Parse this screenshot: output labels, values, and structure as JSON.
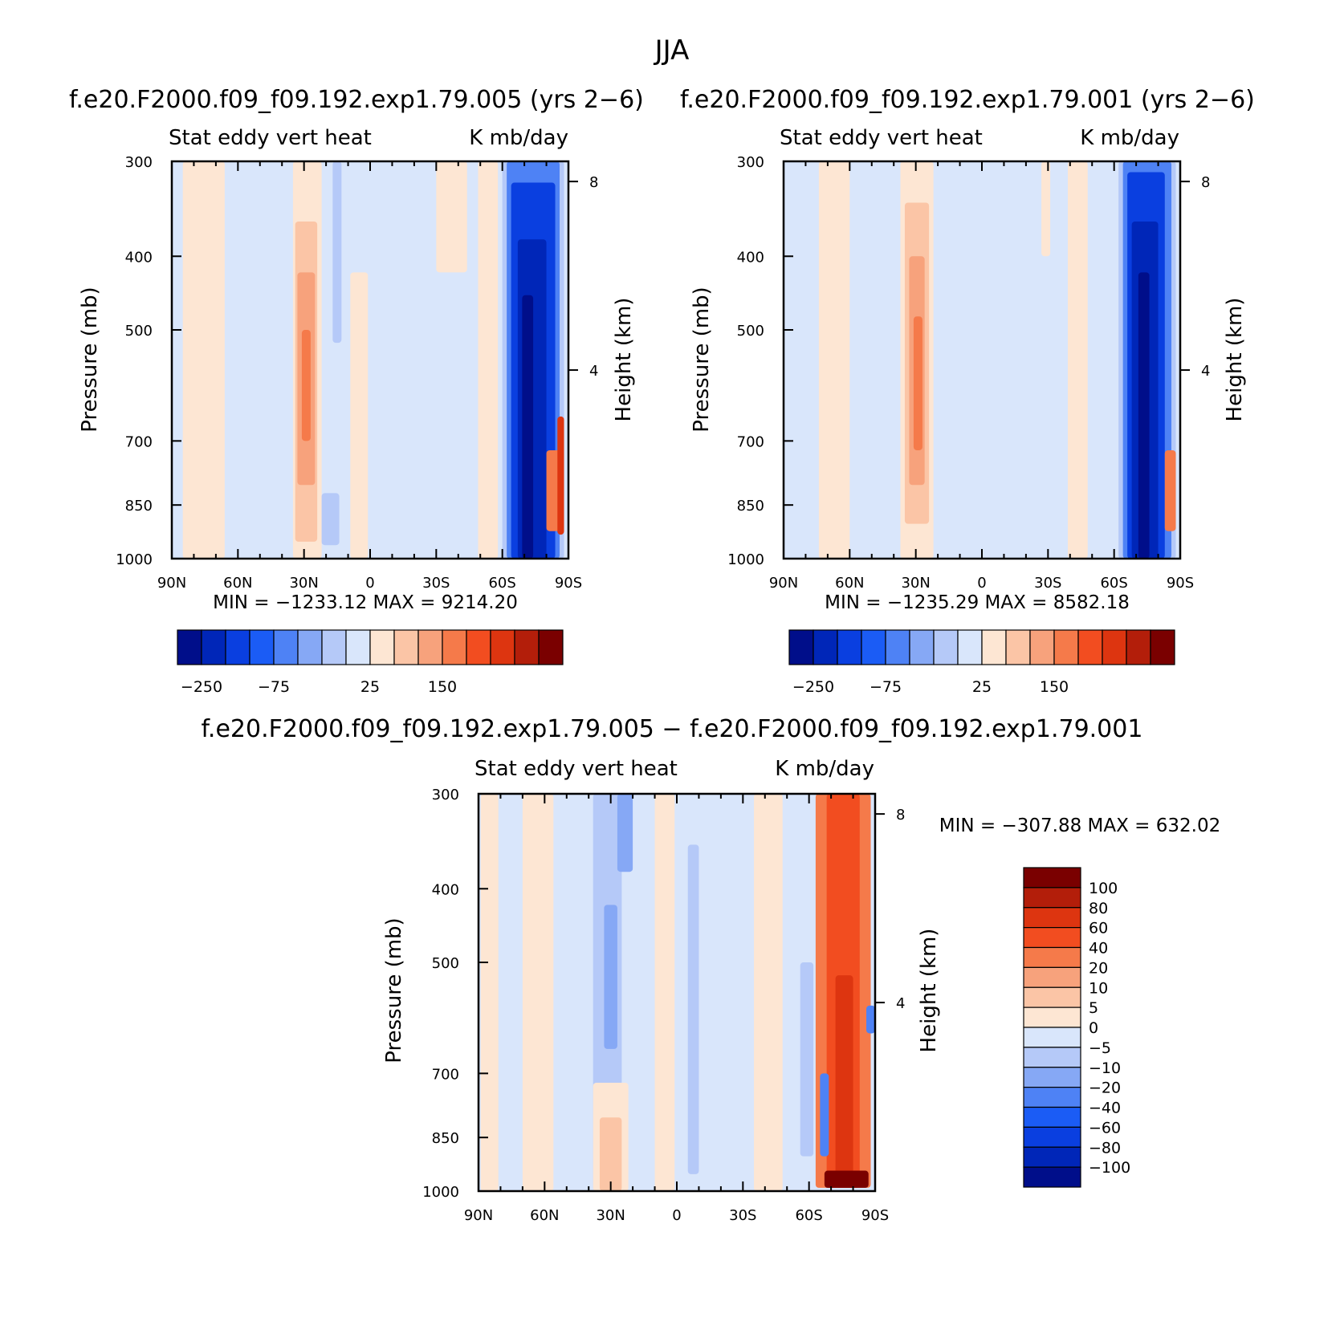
{
  "figure_title": "JJA",
  "chart_data": [
    {
      "type": "heatmap",
      "id": "p1",
      "title": "f.e20.F2000.f09_f09.192.exp1.79.005 (yrs 2−6)",
      "left_label": "Stat eddy vert heat",
      "right_label": "K mb/day",
      "ylabel": "Pressure (mb)",
      "y2label": "Height (km)",
      "x_ticks": [
        "90N",
        "60N",
        "30N",
        "0",
        "30S",
        "60S",
        "90S"
      ],
      "x_tick_values": [
        90,
        60,
        30,
        0,
        -30,
        -60,
        -90
      ],
      "y_ticks": [
        "300",
        "400",
        "500",
        "700",
        "850",
        "1000"
      ],
      "y_tick_values": [
        300,
        400,
        500,
        700,
        850,
        1000
      ],
      "y2_ticks": [
        "8",
        "4"
      ],
      "y2_tick_values": [
        8,
        4
      ],
      "xlim": [
        90,
        -90
      ],
      "ylim": [
        1000,
        300
      ],
      "min_max_text": "MIN = −1233.12   MAX = 9214.20",
      "colorbar_labels": [
        "−250",
        "−75",
        "25",
        "150"
      ],
      "colorbar_colors": [
        "#000e8a",
        "#0026b8",
        "#0a3fe0",
        "#1b5cf5",
        "#4e82f5",
        "#86a8f5",
        "#b5c9f8",
        "#d9e6fb",
        "#fde6d3",
        "#fbc5a6",
        "#f7a27c",
        "#f57a4a",
        "#f24d20",
        "#dd3510",
        "#b31e0a",
        "#7a0000"
      ],
      "field": [
        {
          "lat_min": 66,
          "lat_max": 85,
          "p_top": 300,
          "p_bot": 1000,
          "color": "#fde6d3"
        },
        {
          "lat_min": 22,
          "lat_max": 35,
          "p_top": 300,
          "p_bot": 1000,
          "color": "#fde6d3"
        },
        {
          "lat_min": 24,
          "lat_max": 34,
          "p_top": 360,
          "p_bot": 950,
          "color": "#fbc5a6"
        },
        {
          "lat_min": 25,
          "lat_max": 33,
          "p_top": 420,
          "p_bot": 800,
          "color": "#f7a27c"
        },
        {
          "lat_min": 27,
          "lat_max": 31,
          "p_top": 500,
          "p_bot": 700,
          "color": "#f57a4a"
        },
        {
          "lat_min": 1,
          "lat_max": 9,
          "p_top": 420,
          "p_bot": 1000,
          "color": "#fde6d3"
        },
        {
          "lat_min": 13,
          "lat_max": 17,
          "p_top": 300,
          "p_bot": 520,
          "color": "#b5c9f8"
        },
        {
          "lat_min": 14,
          "lat_max": 22,
          "p_top": 820,
          "p_bot": 960,
          "color": "#b5c9f8"
        },
        {
          "lat_min": -44,
          "lat_max": -30,
          "p_top": 300,
          "p_bot": 420,
          "color": "#fde6d3"
        },
        {
          "lat_min": -58,
          "lat_max": -49,
          "p_top": 300,
          "p_bot": 1000,
          "color": "#fde6d3"
        },
        {
          "lat_min": -88,
          "lat_max": -60,
          "p_top": 300,
          "p_bot": 1000,
          "color": "#b5c9f8"
        },
        {
          "lat_min": -86,
          "lat_max": -62,
          "p_top": 300,
          "p_bot": 1000,
          "color": "#4e82f5"
        },
        {
          "lat_min": -84,
          "lat_max": -64,
          "p_top": 320,
          "p_bot": 1000,
          "color": "#0a3fe0"
        },
        {
          "lat_min": -80,
          "lat_max": -67,
          "p_top": 380,
          "p_bot": 1000,
          "color": "#0026b8"
        },
        {
          "lat_min": -74,
          "lat_max": -69,
          "p_top": 450,
          "p_bot": 1000,
          "color": "#000e8a"
        },
        {
          "lat_min": -88,
          "lat_max": -80,
          "p_top": 720,
          "p_bot": 920,
          "color": "#f57a4a"
        },
        {
          "lat_min": -88,
          "lat_max": -85,
          "p_top": 650,
          "p_bot": 930,
          "color": "#dd3510"
        }
      ]
    },
    {
      "type": "heatmap",
      "id": "p2",
      "title": "f.e20.F2000.f09_f09.192.exp1.79.001 (yrs 2−6)",
      "left_label": "Stat eddy vert heat",
      "right_label": "K mb/day",
      "ylabel": "Pressure (mb)",
      "y2label": "Height (km)",
      "x_ticks": [
        "90N",
        "60N",
        "30N",
        "0",
        "30S",
        "60S",
        "90S"
      ],
      "x_tick_values": [
        90,
        60,
        30,
        0,
        -30,
        -60,
        -90
      ],
      "y_ticks": [
        "300",
        "400",
        "500",
        "700",
        "850",
        "1000"
      ],
      "y_tick_values": [
        300,
        400,
        500,
        700,
        850,
        1000
      ],
      "y2_ticks": [
        "8",
        "4"
      ],
      "y2_tick_values": [
        8,
        4
      ],
      "xlim": [
        90,
        -90
      ],
      "ylim": [
        1000,
        300
      ],
      "min_max_text": "MIN = −1235.29   MAX = 8582.18",
      "colorbar_labels": [
        "−250",
        "−75",
        "25",
        "150"
      ],
      "colorbar_colors": [
        "#000e8a",
        "#0026b8",
        "#0a3fe0",
        "#1b5cf5",
        "#4e82f5",
        "#86a8f5",
        "#b5c9f8",
        "#d9e6fb",
        "#fde6d3",
        "#fbc5a6",
        "#f7a27c",
        "#f57a4a",
        "#f24d20",
        "#dd3510",
        "#b31e0a",
        "#7a0000"
      ],
      "field": [
        {
          "lat_min": 60,
          "lat_max": 74,
          "p_top": 300,
          "p_bot": 1000,
          "color": "#fde6d3"
        },
        {
          "lat_min": 22,
          "lat_max": 37,
          "p_top": 300,
          "p_bot": 1000,
          "color": "#fde6d3"
        },
        {
          "lat_min": 24,
          "lat_max": 35,
          "p_top": 340,
          "p_bot": 900,
          "color": "#fbc5a6"
        },
        {
          "lat_min": 26,
          "lat_max": 33,
          "p_top": 400,
          "p_bot": 800,
          "color": "#f7a27c"
        },
        {
          "lat_min": 27,
          "lat_max": 31,
          "p_top": 480,
          "p_bot": 720,
          "color": "#f57a4a"
        },
        {
          "lat_min": -48,
          "lat_max": -39,
          "p_top": 300,
          "p_bot": 1000,
          "color": "#fde6d3"
        },
        {
          "lat_min": -31,
          "lat_max": -27,
          "p_top": 300,
          "p_bot": 400,
          "color": "#fde6d3"
        },
        {
          "lat_min": -88,
          "lat_max": -62,
          "p_top": 300,
          "p_bot": 1000,
          "color": "#b5c9f8"
        },
        {
          "lat_min": -86,
          "lat_max": -64,
          "p_top": 300,
          "p_bot": 1000,
          "color": "#4e82f5"
        },
        {
          "lat_min": -83,
          "lat_max": -66,
          "p_top": 310,
          "p_bot": 1000,
          "color": "#0a3fe0"
        },
        {
          "lat_min": -80,
          "lat_max": -68,
          "p_top": 360,
          "p_bot": 1000,
          "color": "#0026b8"
        },
        {
          "lat_min": -76,
          "lat_max": -71,
          "p_top": 420,
          "p_bot": 1000,
          "color": "#000e8a"
        },
        {
          "lat_min": -88,
          "lat_max": -83,
          "p_top": 720,
          "p_bot": 920,
          "color": "#f57a4a"
        }
      ]
    },
    {
      "type": "heatmap",
      "id": "p3",
      "title": "f.e20.F2000.f09_f09.192.exp1.79.005 − f.e20.F2000.f09_f09.192.exp1.79.001",
      "left_label": "Stat eddy vert heat",
      "right_label": "K mb/day",
      "ylabel": "Pressure (mb)",
      "y2label": "Height (km)",
      "x_ticks": [
        "90N",
        "60N",
        "30N",
        "0",
        "30S",
        "60S",
        "90S"
      ],
      "x_tick_values": [
        90,
        60,
        30,
        0,
        -30,
        -60,
        -90
      ],
      "y_ticks": [
        "300",
        "400",
        "500",
        "700",
        "850",
        "1000"
      ],
      "y_tick_values": [
        300,
        400,
        500,
        700,
        850,
        1000
      ],
      "y2_ticks": [
        "8",
        "4"
      ],
      "y2_tick_values": [
        8,
        4
      ],
      "xlim": [
        90,
        -90
      ],
      "ylim": [
        1000,
        300
      ],
      "min_max_text": "MIN = −307.88   MAX = 632.02",
      "colorbar_labels": [
        "100",
        "80",
        "60",
        "40",
        "20",
        "10",
        "5",
        "0",
        "−5",
        "−10",
        "−20",
        "−40",
        "−60",
        "−80",
        "−100"
      ],
      "colorbar_colors": [
        "#7a0000",
        "#b31e0a",
        "#dd3510",
        "#f24d20",
        "#f57a4a",
        "#f7a27c",
        "#fbc5a6",
        "#fde6d3",
        "#d9e6fb",
        "#b5c9f8",
        "#86a8f5",
        "#4e82f5",
        "#1b5cf5",
        "#0a3fe0",
        "#0026b8",
        "#000e8a"
      ],
      "field": [
        {
          "lat_min": 56,
          "lat_max": 70,
          "p_top": 300,
          "p_bot": 1000,
          "color": "#fde6d3"
        },
        {
          "lat_min": 81,
          "lat_max": 89,
          "p_top": 300,
          "p_bot": 1000,
          "color": "#fde6d3"
        },
        {
          "lat_min": 25,
          "lat_max": 38,
          "p_top": 300,
          "p_bot": 1000,
          "color": "#b5c9f8"
        },
        {
          "lat_min": 27,
          "lat_max": 33,
          "p_top": 420,
          "p_bot": 650,
          "color": "#86a8f5"
        },
        {
          "lat_min": 20,
          "lat_max": 27,
          "p_top": 300,
          "p_bot": 380,
          "color": "#86a8f5"
        },
        {
          "lat_min": 22,
          "lat_max": 38,
          "p_top": 720,
          "p_bot": 1000,
          "color": "#fde6d3"
        },
        {
          "lat_min": 25,
          "lat_max": 35,
          "p_top": 800,
          "p_bot": 1000,
          "color": "#fbc5a6"
        },
        {
          "lat_min": 1,
          "lat_max": 10,
          "p_top": 300,
          "p_bot": 1000,
          "color": "#fde6d3"
        },
        {
          "lat_min": -10,
          "lat_max": -5,
          "p_top": 350,
          "p_bot": 950,
          "color": "#b5c9f8"
        },
        {
          "lat_min": -48,
          "lat_max": -35,
          "p_top": 300,
          "p_bot": 1000,
          "color": "#fde6d3"
        },
        {
          "lat_min": -62,
          "lat_max": -56,
          "p_top": 500,
          "p_bot": 900,
          "color": "#b5c9f8"
        },
        {
          "lat_min": -88,
          "lat_max": -63,
          "p_top": 300,
          "p_bot": 990,
          "color": "#f57a4a"
        },
        {
          "lat_min": -83,
          "lat_max": -68,
          "p_top": 300,
          "p_bot": 990,
          "color": "#f24d20"
        },
        {
          "lat_min": -80,
          "lat_max": -72,
          "p_top": 520,
          "p_bot": 990,
          "color": "#dd3510"
        },
        {
          "lat_min": -87,
          "lat_max": -67,
          "p_top": 940,
          "p_bot": 990,
          "color": "#7a0000"
        },
        {
          "lat_min": -69,
          "lat_max": -65,
          "p_top": 700,
          "p_bot": 900,
          "color": "#4e82f5"
        },
        {
          "lat_min": -90,
          "lat_max": -86,
          "p_top": 570,
          "p_bot": 620,
          "color": "#4e82f5"
        }
      ]
    }
  ]
}
